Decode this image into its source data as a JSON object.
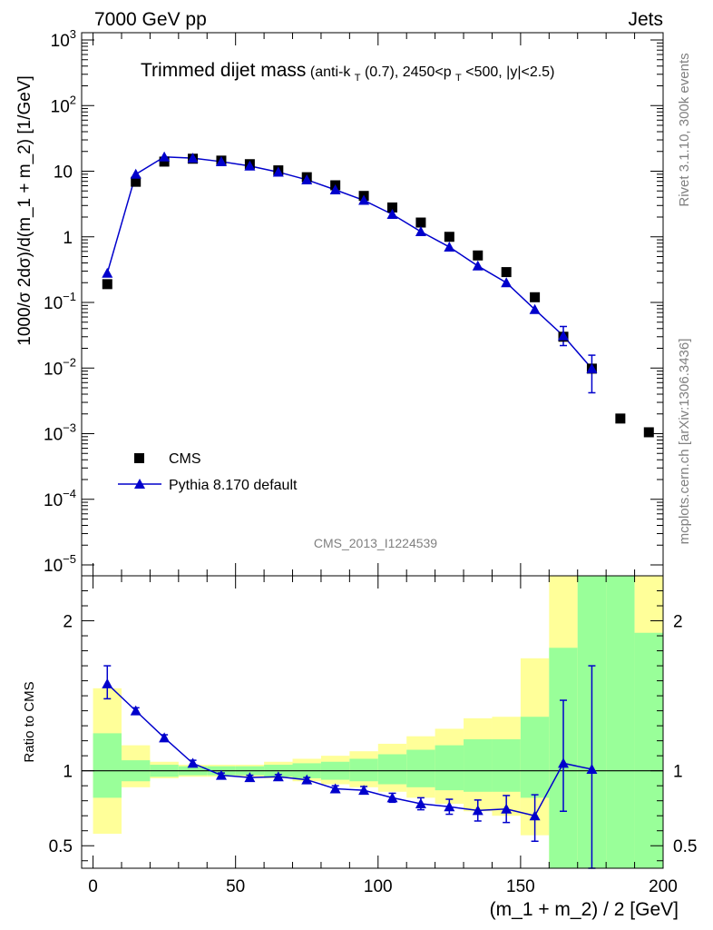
{
  "header": {
    "left": "7000 GeV pp",
    "right": "Jets"
  },
  "side_labels": {
    "rivet": "Rivet 3.1.10,  300k events",
    "mcplots": "mcplots.cern.ch [arXiv:1306.3436]"
  },
  "colors": {
    "pythia": "#0000cc",
    "data": "#000000",
    "band_inner": "#99ff99",
    "band_outer": "#ffff99"
  },
  "chart_data": [
    {
      "type": "scatter",
      "title": "Trimmed dijet mass",
      "title_main": "Trimmed dijet mass",
      "title_sub": {
        "p1": "(anti-k",
        "s1": "T",
        "p2": "(0.7), 2450<p",
        "s2": "T",
        "p3": "<500, |y|<2.5)"
      },
      "ylabel": "1000/σ 2dσ)/d(m_1 + m_2) [1/GeV]",
      "xlabel": "",
      "yscale": "log",
      "ylim": [
        1e-05,
        1000
      ],
      "xlim": [
        -4,
        200
      ],
      "watermark": "CMS_2013_I1224539",
      "legend": {
        "placement": "bottom-left",
        "entries": [
          "CMS",
          "Pythia 8.170 default"
        ]
      },
      "y_ticks": [
        {
          "value": 1000,
          "label": "10",
          "exp": "3"
        },
        {
          "value": 100,
          "label": "10",
          "exp": "2"
        },
        {
          "value": 10,
          "label": "10",
          "exp": ""
        },
        {
          "value": 1,
          "label": "1",
          "exp": ""
        },
        {
          "value": 0.1,
          "label": "10",
          "exp": "−1"
        },
        {
          "value": 0.01,
          "label": "10",
          "exp": "−2"
        },
        {
          "value": 0.001,
          "label": "10",
          "exp": "−3"
        },
        {
          "value": 0.0001,
          "label": "10",
          "exp": "−4"
        },
        {
          "value": 1e-05,
          "label": "10",
          "exp": "−5"
        }
      ],
      "series": [
        {
          "name": "CMS",
          "marker": "square",
          "x": [
            5,
            15,
            25,
            35,
            45,
            55,
            65,
            75,
            85,
            95,
            105,
            115,
            125,
            135,
            145,
            155,
            165,
            175,
            185,
            195
          ],
          "y": [
            0.19,
            6.9,
            14.0,
            15.5,
            14.5,
            12.8,
            10.3,
            8.1,
            6.1,
            4.2,
            2.8,
            1.65,
            1.0,
            0.52,
            0.29,
            0.12,
            0.03,
            0.0098,
            0.0017,
            0.00105
          ]
        },
        {
          "name": "Pythia 8.170 default",
          "marker": "triangle",
          "x": [
            5,
            15,
            25,
            35,
            45,
            55,
            65,
            75,
            85,
            95,
            105,
            115,
            125,
            135,
            145,
            155,
            165,
            175
          ],
          "y": [
            0.28,
            9.0,
            16.5,
            15.8,
            14.0,
            12.0,
            9.7,
            7.4,
            5.2,
            3.6,
            2.2,
            1.2,
            0.7,
            0.36,
            0.2,
            0.078,
            0.031,
            0.0098
          ],
          "yerr_low": [
            0,
            0,
            0,
            0,
            0,
            0,
            0,
            0,
            0,
            0,
            0,
            0,
            0,
            0,
            0,
            0,
            0.009,
            0.0056
          ],
          "yerr_high": [
            0,
            0,
            0,
            0,
            0,
            0,
            0,
            0,
            0,
            0,
            0,
            0,
            0,
            0,
            0,
            0,
            0.012,
            0.0059
          ]
        }
      ]
    },
    {
      "type": "line",
      "title": "",
      "ylabel": "Ratio to CMS",
      "xlabel": "(m_1 + m_2) / 2 [GeV]",
      "ylim": [
        0.35,
        2.3
      ],
      "xlim": [
        -4,
        200
      ],
      "x_ticks": [
        0,
        50,
        100,
        150,
        200
      ],
      "y_ticks": [
        0.5,
        1,
        2
      ],
      "reference_line": 1,
      "bands": {
        "edges": [
          0,
          10,
          20,
          30,
          40,
          50,
          60,
          70,
          80,
          90,
          100,
          110,
          120,
          130,
          140,
          150,
          160,
          170,
          180,
          190,
          200
        ],
        "inner_low": [
          0.82,
          0.93,
          0.96,
          0.97,
          0.97,
          0.97,
          0.96,
          0.95,
          0.94,
          0.93,
          0.91,
          0.89,
          0.87,
          0.86,
          0.86,
          0.82,
          0.35,
          0.35,
          0.35,
          0.35
        ],
        "inner_high": [
          1.25,
          1.07,
          1.04,
          1.03,
          1.03,
          1.03,
          1.04,
          1.05,
          1.06,
          1.08,
          1.11,
          1.14,
          1.17,
          1.21,
          1.21,
          1.36,
          1.82,
          2.3,
          2.3,
          1.92
        ],
        "outer_low": [
          0.58,
          0.89,
          0.95,
          0.96,
          0.96,
          0.96,
          0.95,
          0.93,
          0.91,
          0.89,
          0.86,
          0.82,
          0.78,
          0.73,
          0.7,
          0.57,
          0.35,
          0.35,
          0.35,
          0.35
        ],
        "outer_high": [
          1.55,
          1.17,
          1.06,
          1.04,
          1.04,
          1.04,
          1.06,
          1.08,
          1.1,
          1.13,
          1.18,
          1.23,
          1.28,
          1.35,
          1.36,
          1.75,
          2.3,
          2.3,
          2.3,
          2.3
        ]
      },
      "series": [
        {
          "name": "Pythia 8.170 default",
          "x": [
            5,
            15,
            25,
            35,
            45,
            55,
            65,
            75,
            85,
            95,
            105,
            115,
            125,
            135,
            145,
            155,
            165,
            175
          ],
          "y": [
            1.58,
            1.4,
            1.22,
            1.05,
            0.97,
            0.955,
            0.96,
            0.94,
            0.88,
            0.87,
            0.82,
            0.78,
            0.76,
            0.735,
            0.745,
            0.7,
            1.05,
            1.01
          ],
          "yerr_low": [
            0.1,
            0.02,
            0.02,
            0.02,
            0.015,
            0.015,
            0.015,
            0.015,
            0.02,
            0.025,
            0.03,
            0.04,
            0.05,
            0.07,
            0.09,
            0.17,
            0.32,
            0.66
          ],
          "yerr_high": [
            0.12,
            0.02,
            0.02,
            0.02,
            0.015,
            0.015,
            0.015,
            0.015,
            0.02,
            0.025,
            0.03,
            0.04,
            0.05,
            0.07,
            0.09,
            0.14,
            0.42,
            0.69
          ]
        }
      ]
    }
  ]
}
